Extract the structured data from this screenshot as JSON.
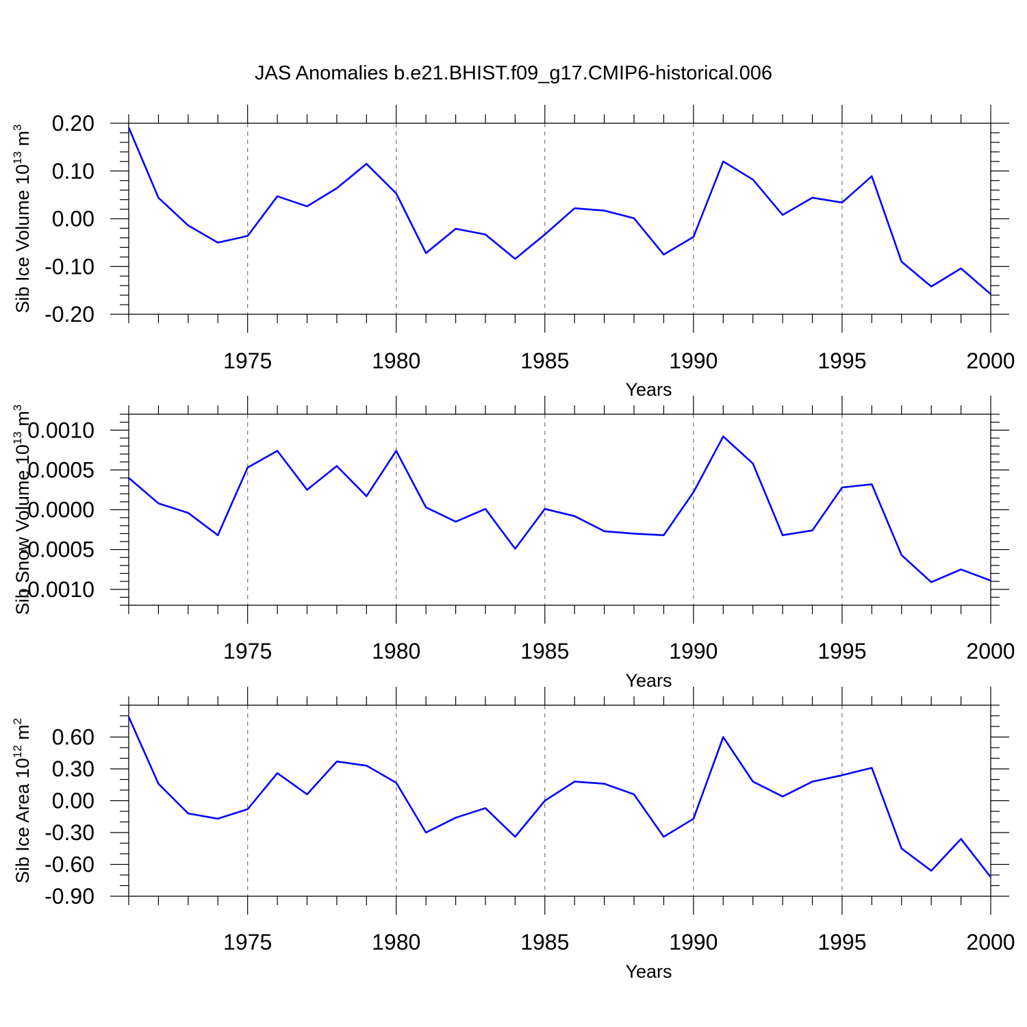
{
  "figure": {
    "title": "JAS Anomalies b.e21.BHIST.f09_g17.CMIP6-historical.006"
  },
  "chart_data": [
    {
      "type": "line",
      "title": "",
      "xlabel": "Years",
      "ylabel": "Sib Ice Volume 10",
      "ylabel_exponent": "13",
      "ylabel_unit": " m",
      "ylabel_unit_exponent": "3",
      "xlim": [
        1971,
        2000
      ],
      "ylim": [
        -0.2,
        0.2
      ],
      "x_ticks": [
        1975,
        1980,
        1985,
        1990,
        1995,
        2000
      ],
      "x_tick_labels": [
        "1975",
        "1980",
        "1985",
        "1990",
        "1995",
        "2000"
      ],
      "x_minor_step": 1,
      "x_reference_lines": [
        1975,
        1980,
        1985,
        1990,
        1995
      ],
      "y_ticks": [
        0.2,
        0.1,
        0.0,
        -0.1,
        -0.2
      ],
      "y_tick_labels": [
        "0.20",
        "0.10",
        "0.00",
        "-0.10",
        "-0.20"
      ],
      "y_minor_step": 0.02,
      "grid": false,
      "series": [
        {
          "color": "#0000ff",
          "x": [
            1971,
            1972,
            1973,
            1974,
            1975,
            1976,
            1977,
            1978,
            1979,
            1980,
            1981,
            1982,
            1983,
            1984,
            1985,
            1986,
            1987,
            1988,
            1989,
            1990,
            1991,
            1992,
            1993,
            1994,
            1995,
            1996,
            1997,
            1998,
            1999,
            2000
          ],
          "values": [
            0.191,
            0.044,
            -0.014,
            -0.05,
            -0.036,
            0.047,
            0.026,
            0.064,
            0.115,
            0.053,
            -0.072,
            -0.021,
            -0.033,
            -0.084,
            -0.033,
            0.022,
            0.017,
            0.001,
            -0.075,
            -0.038,
            0.12,
            0.082,
            0.008,
            0.044,
            0.034,
            0.089,
            -0.09,
            -0.142,
            -0.104,
            -0.158
          ]
        }
      ]
    },
    {
      "type": "line",
      "title": "",
      "xlabel": "Years",
      "ylabel": "Sib Snow Volume 10",
      "ylabel_exponent": "13",
      "ylabel_unit": " m",
      "ylabel_unit_exponent": "3",
      "xlim": [
        1971,
        2000
      ],
      "ylim": [
        -0.0012,
        0.0012
      ],
      "x_ticks": [
        1975,
        1980,
        1985,
        1990,
        1995,
        2000
      ],
      "x_tick_labels": [
        "1975",
        "1980",
        "1985",
        "1990",
        "1995",
        "2000"
      ],
      "x_minor_step": 1,
      "x_reference_lines": [
        1975,
        1980,
        1985,
        1990,
        1995
      ],
      "y_ticks": [
        0.001,
        0.0005,
        0.0,
        -0.0005,
        -0.001
      ],
      "y_tick_labels": [
        "0.0010",
        "0.0005",
        "0.0000",
        "-0.0005",
        "-0.0010"
      ],
      "y_minor_step": 0.0001,
      "grid": false,
      "series": [
        {
          "color": "#0000ff",
          "x": [
            1971,
            1972,
            1973,
            1974,
            1975,
            1976,
            1977,
            1978,
            1979,
            1980,
            1981,
            1982,
            1983,
            1984,
            1985,
            1986,
            1987,
            1988,
            1989,
            1990,
            1991,
            1992,
            1993,
            1994,
            1995,
            1996,
            1997,
            1998,
            1999,
            2000
          ],
          "values": [
            0.0004,
            8e-05,
            -4e-05,
            -0.00032,
            0.00053,
            0.00074,
            0.00025,
            0.00055,
            0.00017,
            0.00074,
            3e-05,
            -0.00015,
            1e-05,
            -0.00049,
            1e-05,
            -8e-05,
            -0.00027,
            -0.0003,
            -0.00032,
            0.00022,
            0.00092,
            0.00058,
            -0.00032,
            -0.00026,
            0.00028,
            0.00032,
            -0.00057,
            -0.00091,
            -0.00075,
            -0.00089
          ]
        }
      ]
    },
    {
      "type": "line",
      "title": "",
      "xlabel": "Years",
      "ylabel": "Sib Ice Area 10",
      "ylabel_exponent": "12",
      "ylabel_unit": " m",
      "ylabel_unit_exponent": "2",
      "xlim": [
        1971,
        2000
      ],
      "ylim": [
        -0.9,
        0.9
      ],
      "x_ticks": [
        1975,
        1980,
        1985,
        1990,
        1995,
        2000
      ],
      "x_tick_labels": [
        "1975",
        "1980",
        "1985",
        "1990",
        "1995",
        "2000"
      ],
      "x_minor_step": 1,
      "x_reference_lines": [
        1975,
        1980,
        1985,
        1990,
        1995
      ],
      "y_ticks": [
        0.6,
        0.3,
        0.0,
        -0.3,
        -0.6,
        -0.9
      ],
      "y_tick_labels": [
        "0.60",
        "0.30",
        "0.00",
        "-0.30",
        "-0.60",
        "-0.90"
      ],
      "y_minor_step": 0.1,
      "grid": false,
      "series": [
        {
          "color": "#0000ff",
          "x": [
            1971,
            1972,
            1973,
            1974,
            1975,
            1976,
            1977,
            1978,
            1979,
            1980,
            1981,
            1982,
            1983,
            1984,
            1985,
            1986,
            1987,
            1988,
            1989,
            1990,
            1991,
            1992,
            1993,
            1994,
            1995,
            1996,
            1997,
            1998,
            1999,
            2000
          ],
          "values": [
            0.79,
            0.16,
            -0.12,
            -0.17,
            -0.08,
            0.26,
            0.06,
            0.37,
            0.33,
            0.17,
            -0.3,
            -0.16,
            -0.07,
            -0.34,
            0.0,
            0.18,
            0.16,
            0.06,
            -0.34,
            -0.17,
            0.6,
            0.18,
            0.04,
            0.18,
            0.24,
            0.31,
            -0.45,
            -0.66,
            -0.36,
            -0.72
          ]
        }
      ]
    }
  ]
}
